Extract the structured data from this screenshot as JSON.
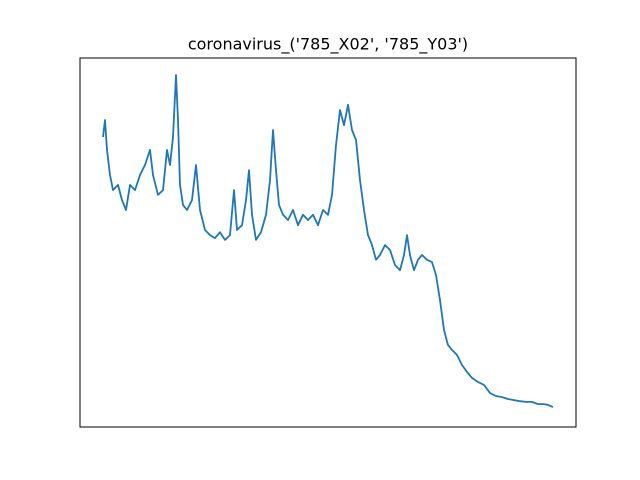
{
  "chart_data": {
    "type": "line",
    "title": "coronavirus_('785_X02', '785_Y03')",
    "x": [
      0,
      2,
      4,
      7,
      10,
      15,
      19,
      23,
      27,
      32,
      37,
      42,
      47,
      50,
      55,
      60,
      64,
      67,
      70,
      73,
      75,
      77,
      80,
      84,
      89,
      93,
      97,
      102,
      107,
      112,
      117,
      122,
      127,
      131,
      134,
      139,
      143,
      146,
      149,
      153,
      158,
      163,
      167,
      170,
      173,
      176,
      180,
      185,
      190,
      195,
      200,
      205,
      210,
      215,
      220,
      225,
      229,
      233,
      237,
      241,
      245,
      249,
      253,
      257,
      261,
      265,
      269,
      273,
      277,
      282,
      287,
      292,
      297,
      301,
      304,
      307,
      311,
      315,
      319,
      324,
      329,
      333,
      337,
      341,
      345,
      349,
      354,
      359,
      364,
      369,
      375,
      381,
      387,
      393,
      399,
      405,
      411,
      417,
      423,
      429,
      435,
      441,
      445,
      450
    ],
    "series": [
      {
        "name": "coronavirus",
        "color": "#1f77b4",
        "values": [
          78.6,
          83.2,
          75.1,
          68.3,
          64.2,
          65.6,
          61.5,
          58.8,
          65.6,
          64.2,
          68.3,
          71.0,
          75.1,
          68.3,
          62.9,
          64.2,
          75.1,
          71.0,
          78.6,
          95.4,
          83.2,
          65.6,
          60.2,
          58.8,
          61.5,
          71.0,
          58.8,
          53.4,
          52.0,
          51.2,
          52.8,
          50.7,
          52.0,
          64.2,
          53.4,
          54.7,
          61.5,
          69.6,
          57.5,
          50.7,
          52.8,
          57.5,
          66.9,
          80.5,
          69.6,
          60.2,
          57.5,
          56.1,
          58.8,
          54.7,
          57.5,
          56.1,
          57.5,
          54.7,
          58.8,
          57.5,
          62.9,
          76.4,
          85.9,
          81.8,
          87.3,
          80.5,
          77.8,
          66.9,
          58.8,
          52.0,
          49.3,
          45.3,
          46.6,
          49.3,
          48.0,
          43.9,
          42.5,
          46.6,
          52.0,
          46.6,
          42.5,
          45.3,
          46.6,
          45.3,
          44.7,
          41.2,
          34.4,
          26.3,
          22.2,
          20.9,
          19.5,
          16.8,
          14.9,
          13.3,
          12.2,
          11.4,
          9.2,
          8.4,
          8.1,
          7.6,
          7.3,
          7.0,
          6.8,
          6.8,
          6.2,
          6.2,
          6.0,
          5.4
        ]
      }
    ],
    "xlim": [
      -23,
      473
    ],
    "ylim": [
      0,
      100
    ]
  }
}
